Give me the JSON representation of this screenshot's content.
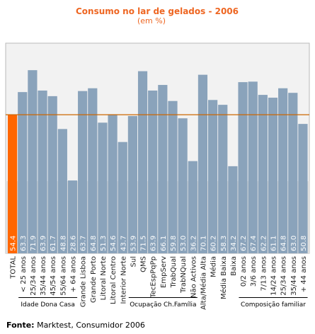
{
  "chart_data": {
    "type": "bar",
    "title": "Consumo no lar de gelados - 2006",
    "subtitle": "(em %)",
    "source_label": "Fonte:",
    "source_text": " Marktest, Consumidor 2006",
    "ylim": [
      0,
      80
    ],
    "reference_value": 54.4,
    "colors": {
      "highlight": "#ff6600",
      "bar": "#8aa3bb",
      "reference_line": "#cc6600",
      "title": "#ee6622",
      "plot_bg": "#f2f2f2",
      "label_band": "#dedede"
    },
    "categories": [
      "TOTAL",
      "< 25 anos",
      "25/34 anos",
      "35/44 anos",
      "45/54 anos",
      "55/64 anos",
      "+ 64 anos",
      "Grande Lisboa",
      "Grande Porto",
      "Litoral Norte",
      "Litoral Centro",
      "Interior Norte",
      "Sul",
      "QMS",
      "TecEspPqPp",
      "EmpServ",
      "TrabQual",
      "TrabNQual",
      "Não Activos",
      "Alta/Média Alta",
      "Média",
      "Média Baixa",
      "Baixa",
      "0/2 anos",
      "3/6 anos",
      "7/13 anos",
      "14/24 anos",
      "25/34 anos",
      "35/44 anos",
      "+ 44 anos"
    ],
    "values": [
      54.4,
      63.3,
      71.9,
      63.9,
      61.7,
      48.8,
      28.6,
      63.7,
      64.8,
      51.3,
      54.6,
      43.7,
      53.9,
      71.5,
      63.9,
      66.1,
      59.8,
      53.0,
      36.2,
      70.1,
      60.2,
      58.3,
      34.2,
      67.2,
      67.4,
      62.2,
      61.1,
      64.8,
      63.0,
      50.8
    ],
    "value_labels": [
      "54.4",
      "63.3",
      "71.9",
      "63.9",
      "61.7",
      "48.8",
      "28.6",
      "63.7",
      "64.8",
      "51.3",
      "54.6",
      "43.7",
      "53.9",
      "71.5",
      "63.9",
      "66.1",
      "59.8",
      "53.0",
      "36.2",
      "70.1",
      "60.2",
      "58.3",
      "34.2",
      "67.2",
      "67.4",
      "62.2",
      "61.1",
      "64.8",
      "63.0",
      "50.8"
    ],
    "highlight_index": 0,
    "groups": [
      {
        "label": "Idade Dona Casa",
        "start": 1,
        "end": 6
      },
      {
        "label": "Ocupação Ch.Família",
        "start": 12,
        "end": 18
      },
      {
        "label": "Composição familiar",
        "start": 23,
        "end": 29
      }
    ]
  }
}
